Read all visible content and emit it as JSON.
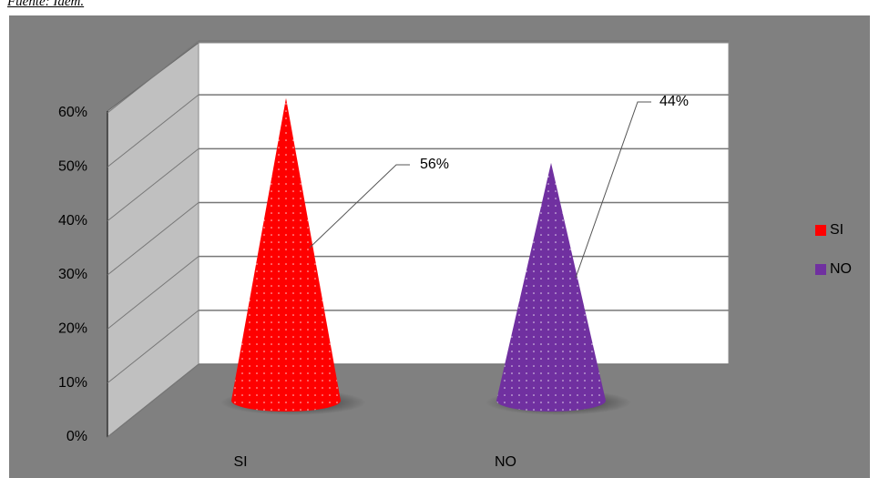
{
  "source": "Fuente: Idem.",
  "chart_data": {
    "type": "cone",
    "categories": [
      "SI",
      "NO"
    ],
    "values": [
      56,
      44
    ],
    "value_labels": [
      "56%",
      "44%"
    ],
    "series_colors": [
      "#ff0000",
      "#7030a0"
    ],
    "ylim": [
      0,
      60
    ],
    "yticks": [
      {
        "value": 0,
        "label": "0%"
      },
      {
        "value": 10,
        "label": "10%"
      },
      {
        "value": 20,
        "label": "20%"
      },
      {
        "value": 30,
        "label": "30%"
      },
      {
        "value": 40,
        "label": "40%"
      },
      {
        "value": 50,
        "label": "50%"
      },
      {
        "value": 60,
        "label": "60%"
      }
    ],
    "grid": true,
    "legend": "right"
  }
}
